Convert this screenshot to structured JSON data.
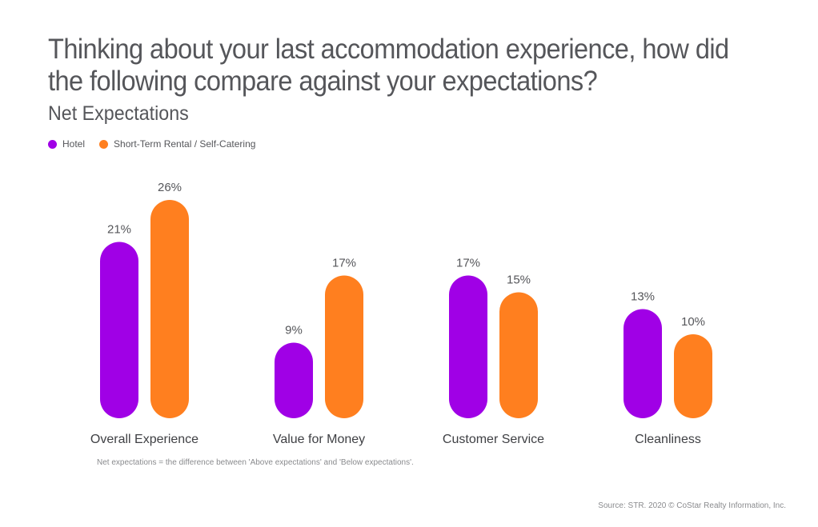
{
  "colors": {
    "hotel": "#a000e6",
    "rental": "#ff7f1f",
    "text": "#55565a"
  },
  "chart_data": {
    "type": "bar",
    "title": "Thinking about your last accommodation experience, how did the following compare against your expectations?",
    "subtitle": "Net Expectations",
    "categories": [
      "Overall Experience",
      "Value for Money",
      "Customer Service",
      "Cleanliness"
    ],
    "series": [
      {
        "name": "Hotel",
        "values": [
          21,
          9,
          17,
          13
        ],
        "labels": [
          "21%",
          "9%",
          "17%",
          "13%"
        ]
      },
      {
        "name": "Short-Term Rental / Self-Catering",
        "values": [
          26,
          17,
          15,
          10
        ],
        "labels": [
          "26%",
          "17%",
          "15%",
          "10%"
        ]
      }
    ],
    "ylim": [
      0,
      26
    ],
    "grid": false,
    "legend": "top-left",
    "note": "Net expectations = the difference between 'Above expectations' and 'Below expectations'.",
    "source": "Source: STR. 2020 © CoStar Realty Information, Inc."
  }
}
